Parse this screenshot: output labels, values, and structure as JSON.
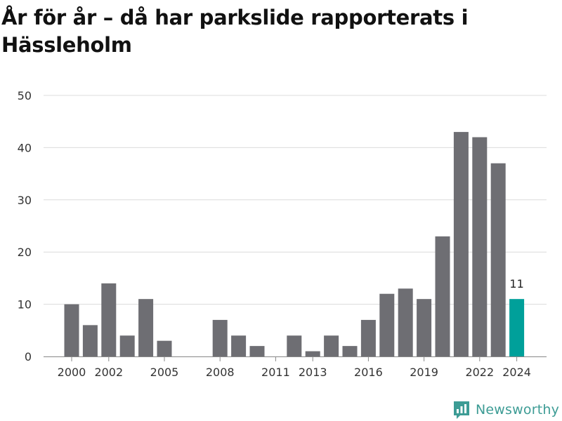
{
  "title": "År för år – då har parkslide rapporterats i Hässleholm",
  "brand": {
    "name": "Newsworthy",
    "icon": "newsworthy-logo-icon",
    "color": "#3d9c95"
  },
  "chart_data": {
    "type": "bar",
    "title": "År för år – då har parkslide rapporterats i Hässleholm",
    "xlabel": "",
    "ylabel": "",
    "ylim": [
      0,
      50
    ],
    "yticks": [
      0,
      10,
      20,
      30,
      40,
      50
    ],
    "grid": true,
    "legend": "none",
    "categories": [
      2000,
      2001,
      2002,
      2003,
      2004,
      2005,
      2006,
      2007,
      2008,
      2009,
      2010,
      2011,
      2012,
      2013,
      2014,
      2015,
      2016,
      2017,
      2018,
      2019,
      2020,
      2021,
      2022,
      2023,
      2024
    ],
    "values": [
      10,
      6,
      14,
      4,
      11,
      3,
      0,
      0,
      7,
      4,
      2,
      0,
      4,
      1,
      4,
      2,
      7,
      12,
      13,
      11,
      23,
      43,
      42,
      37,
      11
    ],
    "xtick_labels": [
      "2000",
      "2002",
      "2005",
      "2008",
      "2011",
      "2013",
      "2016",
      "2019",
      "2022",
      "2024"
    ],
    "highlight": {
      "category": 2024,
      "label": "11"
    },
    "colors": {
      "bar": "#6e6e73",
      "highlight": "#00a09a",
      "grid": "#dcdcdc",
      "axis": "#888888"
    }
  }
}
